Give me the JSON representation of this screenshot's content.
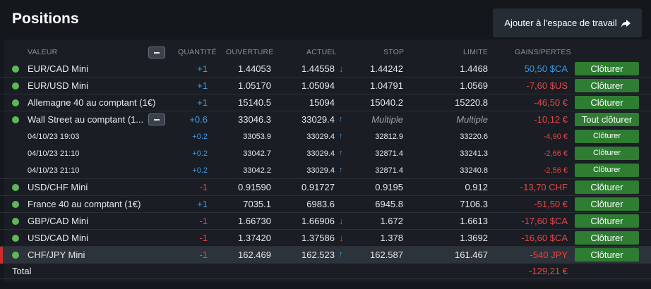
{
  "header": {
    "title": "Positions",
    "add_workspace_label": "Ajouter à l'espace de travail"
  },
  "columns": {
    "valeur": "VALEUR",
    "quantite": "QUANTITÉ",
    "ouverture": "OUVERTURE",
    "actuel": "ACTUEL",
    "stop": "STOP",
    "limite": "LIMITE",
    "gains_pertes": "GAINS/PERTES"
  },
  "rows": [
    {
      "name": "EUR/CAD Mini",
      "qty": "+1",
      "open": "1.44053",
      "current": "1.44558",
      "trend": "down",
      "stop": "1.44242",
      "limit": "1.4468",
      "pl": "50,50 $CA",
      "pl_sign": "pos",
      "action": "Clôturer"
    },
    {
      "name": "EUR/USD Mini",
      "qty": "+1",
      "open": "1.05170",
      "current": "1.05094",
      "trend": "",
      "stop": "1.04791",
      "limit": "1.0569",
      "pl": "-7,60 $US",
      "pl_sign": "neg",
      "action": "Clôturer"
    },
    {
      "name": "Allemagne 40 au comptant (1€)",
      "qty": "+1",
      "open": "15140.5",
      "current": "15094",
      "trend": "",
      "stop": "15040.2",
      "limit": "15220.8",
      "pl": "-46,50 €",
      "pl_sign": "neg",
      "action": "Clôturer"
    },
    {
      "name": "Wall Street au comptant (1...",
      "qty": "+0.6",
      "open": "33046.3",
      "current": "33029.4",
      "trend": "up",
      "stop": "Multiple",
      "limit": "Multiple",
      "pl": "-10,12 €",
      "pl_sign": "neg",
      "action": "Tout clôturer"
    }
  ],
  "sub_rows": [
    {
      "name": "04/10/23 19:03",
      "qty": "+0.2",
      "open": "33053.9",
      "current": "33029.4",
      "stop": "32812.9",
      "limit": "33220.6",
      "pl": "-4,90 €",
      "action": "Clôturer"
    },
    {
      "name": "04/10/23 21:10",
      "qty": "+0.2",
      "open": "33042.7",
      "current": "33029.4",
      "stop": "32871.4",
      "limit": "33241.3",
      "pl": "-2,66 €",
      "action": "Clôturer"
    },
    {
      "name": "04/10/23 21:10",
      "qty": "+0.2",
      "open": "33042.2",
      "current": "33029.4",
      "stop": "32871.4",
      "limit": "33240.8",
      "pl": "-2,56 €",
      "action": "Clôturer"
    }
  ],
  "rows2": [
    {
      "name": "USD/CHF Mini",
      "qty": "-1",
      "open": "0.91590",
      "current": "0.91727",
      "trend": "",
      "stop": "0.9195",
      "limit": "0.912",
      "pl": "-13,70 CHF",
      "action": "Clôturer"
    },
    {
      "name": "France 40 au comptant (1€)",
      "qty": "+1",
      "open": "7035.1",
      "current": "6983.6",
      "trend": "",
      "stop": "6945.8",
      "limit": "7106.3",
      "pl": "-51,50 €",
      "action": "Clôturer"
    },
    {
      "name": "GBP/CAD Mini",
      "qty": "-1",
      "open": "1.66730",
      "current": "1.66906",
      "trend": "down",
      "stop": "1.672",
      "limit": "1.6613",
      "pl": "-17,60 $CA",
      "action": "Clôturer"
    },
    {
      "name": "USD/CAD Mini",
      "qty": "-1",
      "open": "1.37420",
      "current": "1.37586",
      "trend": "down",
      "stop": "1.378",
      "limit": "1.3692",
      "pl": "-16,60 $CA",
      "action": "Clôturer"
    },
    {
      "name": "CHF/JPY Mini",
      "qty": "-1",
      "open": "162.469",
      "current": "162.523",
      "trend": "up",
      "stop": "162.587",
      "limit": "161.467",
      "pl": "-540 JPY",
      "action": "Clôturer"
    }
  ],
  "total": {
    "label": "Total",
    "value": "-129,21 €"
  },
  "colors": {
    "accent_green": "#2e7d32",
    "positive": "#3d9ae8",
    "negative": "#e84545",
    "selected_marker": "#d6272b"
  }
}
